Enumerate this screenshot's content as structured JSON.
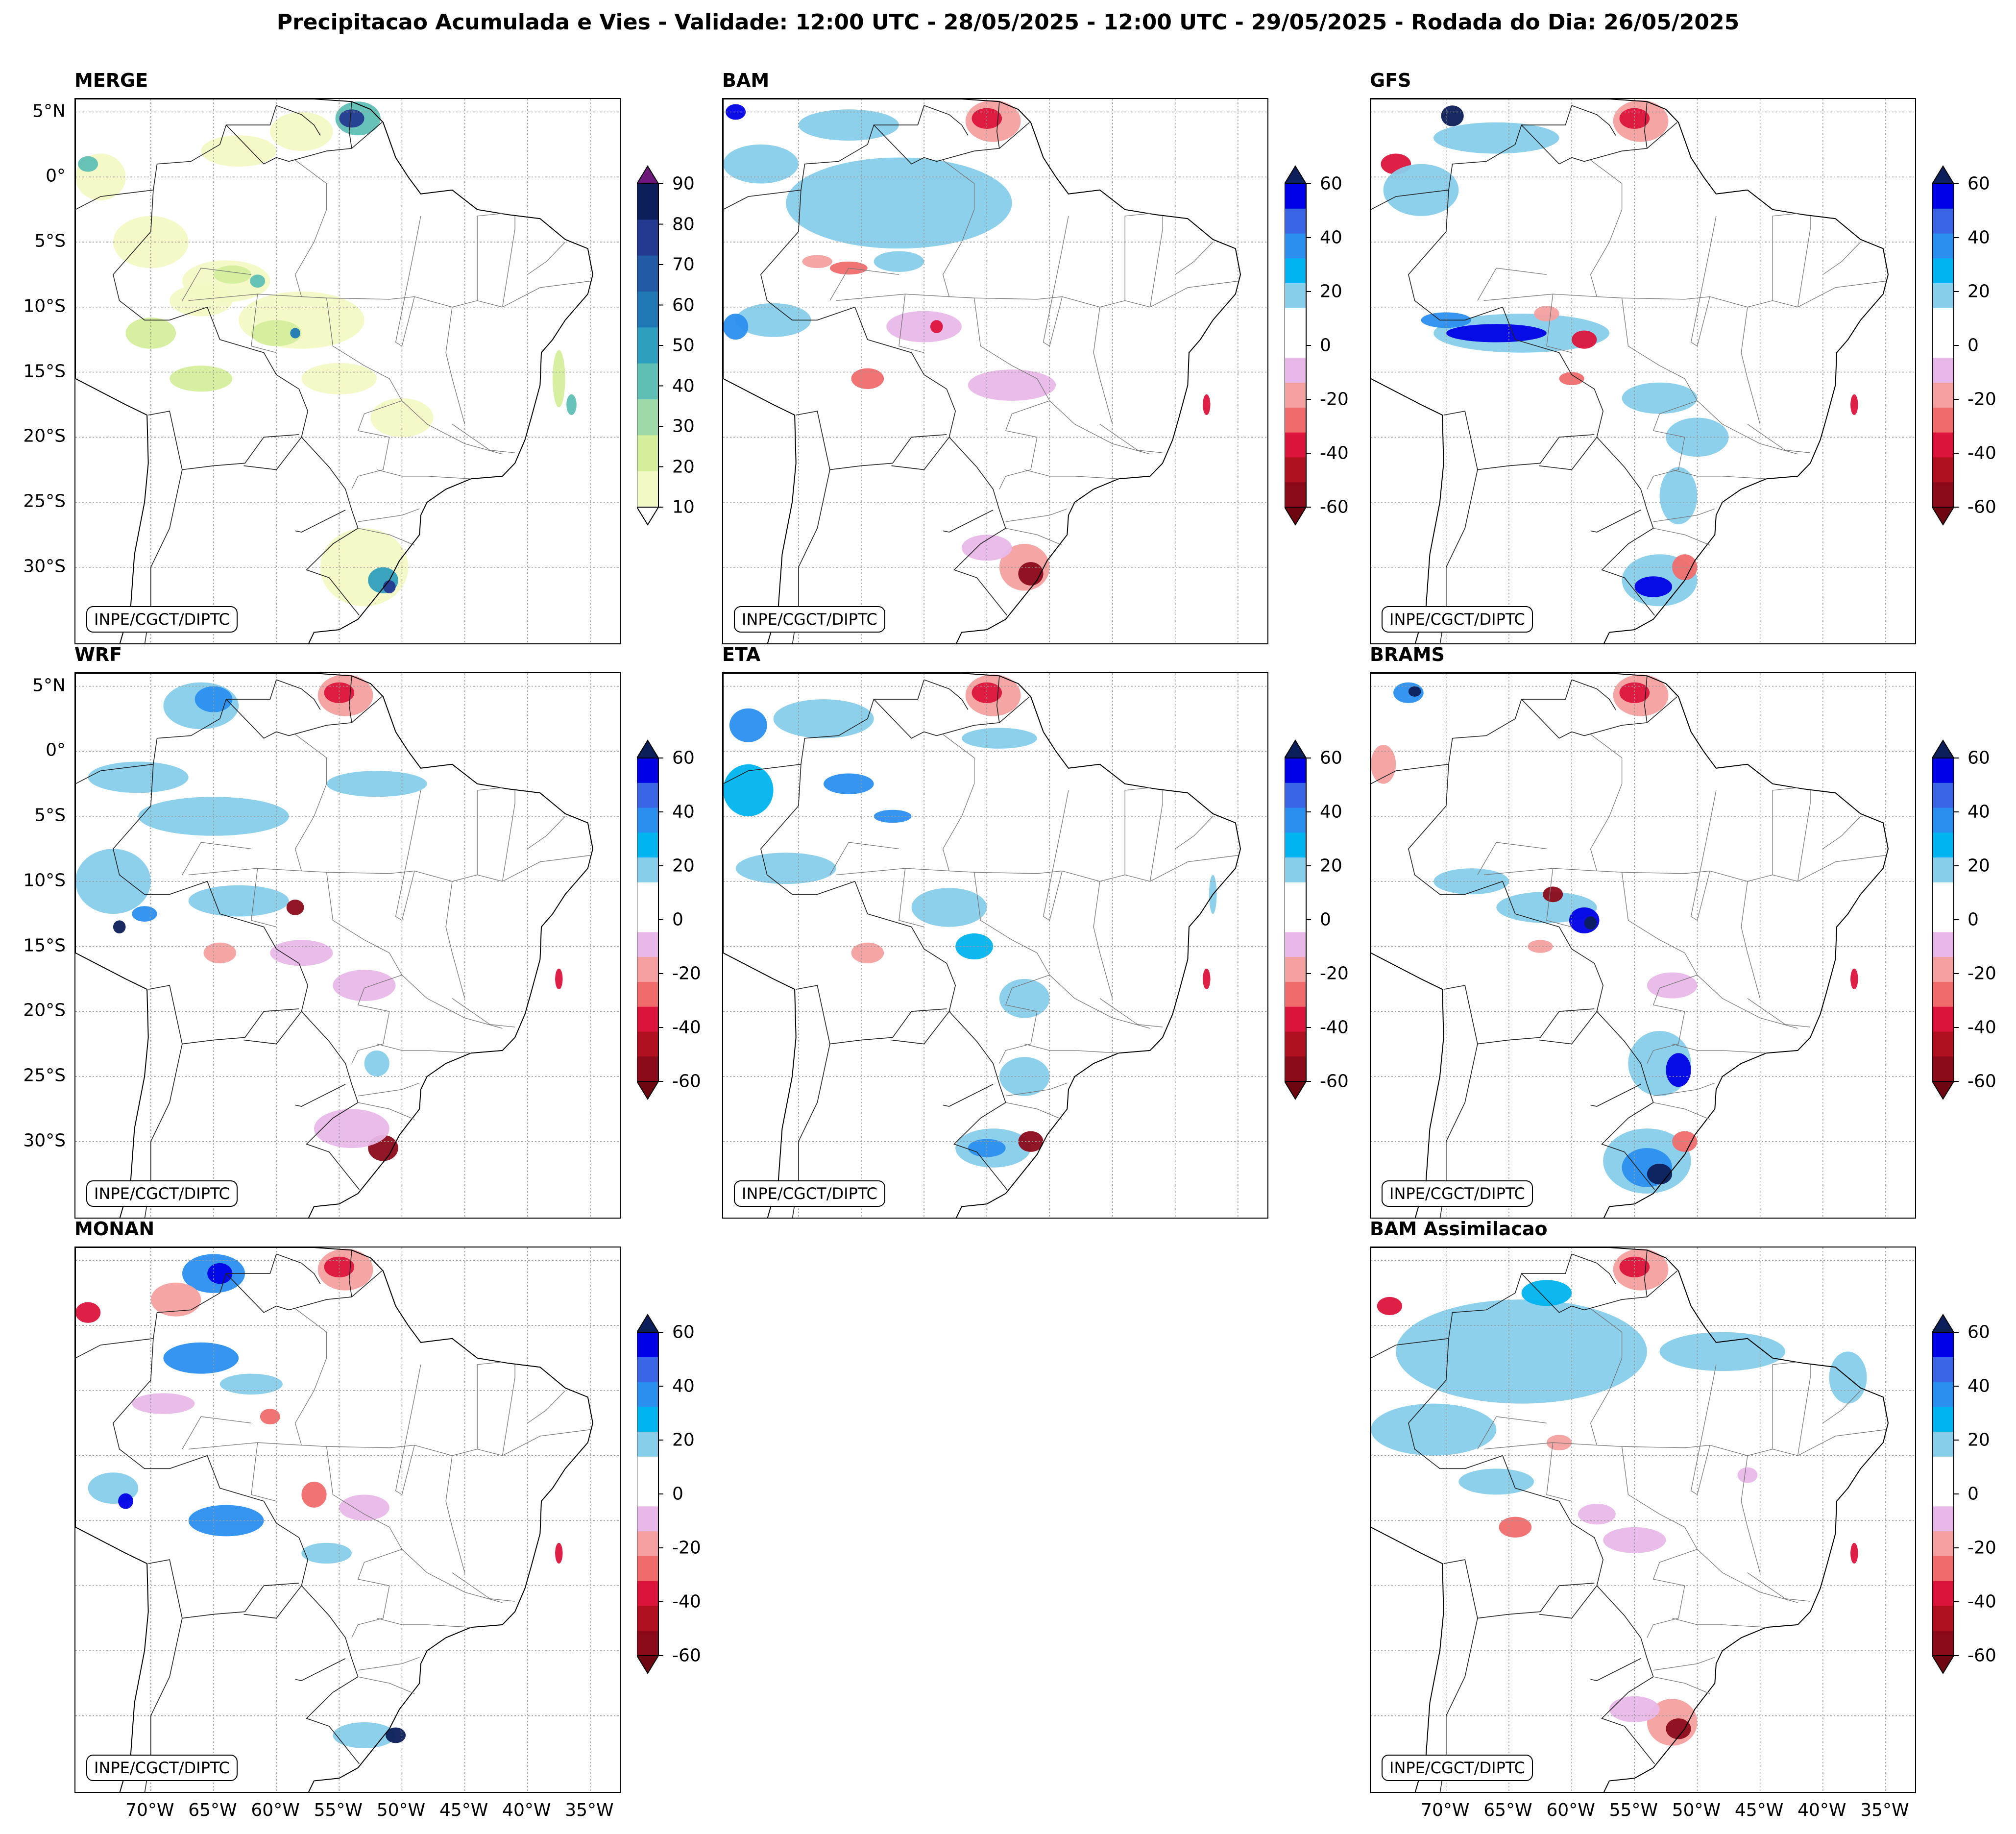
{
  "title": "Precipitacao Acumulada e Vies - Validade: 12:00 UTC - 28/05/2025 - 12:00 UTC - 29/05/2025 - Rodada do Dia: 26/05/2025",
  "credit": "INPE/CGCT/DIPTC",
  "lat_labels": [
    "5°N",
    "0°",
    "5°S",
    "10°S",
    "15°S",
    "20°S",
    "25°S",
    "30°S"
  ],
  "lon_labels": [
    "70°W",
    "65°W",
    "60°W",
    "55°W",
    "50°W",
    "45°W",
    "40°W",
    "35°W"
  ],
  "merge_colorbar": {
    "ticks": [
      "90",
      "80",
      "70",
      "60",
      "50",
      "40",
      "30",
      "20",
      "10"
    ],
    "colors": [
      "#f3f9c4",
      "#d4ee9c",
      "#9fd9a7",
      "#5fbfb5",
      "#2f9fbf",
      "#1f78b4",
      "#235aa6",
      "#243a90",
      "#0d1f5a"
    ]
  },
  "bias_colorbar": {
    "ticks": [
      "60",
      "40",
      "20",
      "0",
      "-20",
      "-40",
      "-60"
    ],
    "colors": [
      "#0000e6",
      "#3a66e6",
      "#2b8ff0",
      "#00b4f0",
      "#87ceeb",
      "#ffffff",
      "#ffffff",
      "#e8b8e8",
      "#f5a0a0",
      "#f06b6b",
      "#dc143c",
      "#b01020",
      "#8b0a1a"
    ]
  },
  "panels": [
    {
      "id": "merge",
      "title": "MERGE",
      "kind": "merge"
    },
    {
      "id": "bam",
      "title": "BAM",
      "kind": "bias"
    },
    {
      "id": "gfs",
      "title": "GFS",
      "kind": "bias"
    },
    {
      "id": "wrf",
      "title": "WRF",
      "kind": "bias"
    },
    {
      "id": "eta",
      "title": "ETA",
      "kind": "bias"
    },
    {
      "id": "brams",
      "title": "BRAMS",
      "kind": "bias"
    },
    {
      "id": "monan",
      "title": "MONAN",
      "kind": "bias"
    },
    {
      "id": "bam-assim",
      "title": "BAM Assimilacao",
      "kind": "bias"
    }
  ]
}
